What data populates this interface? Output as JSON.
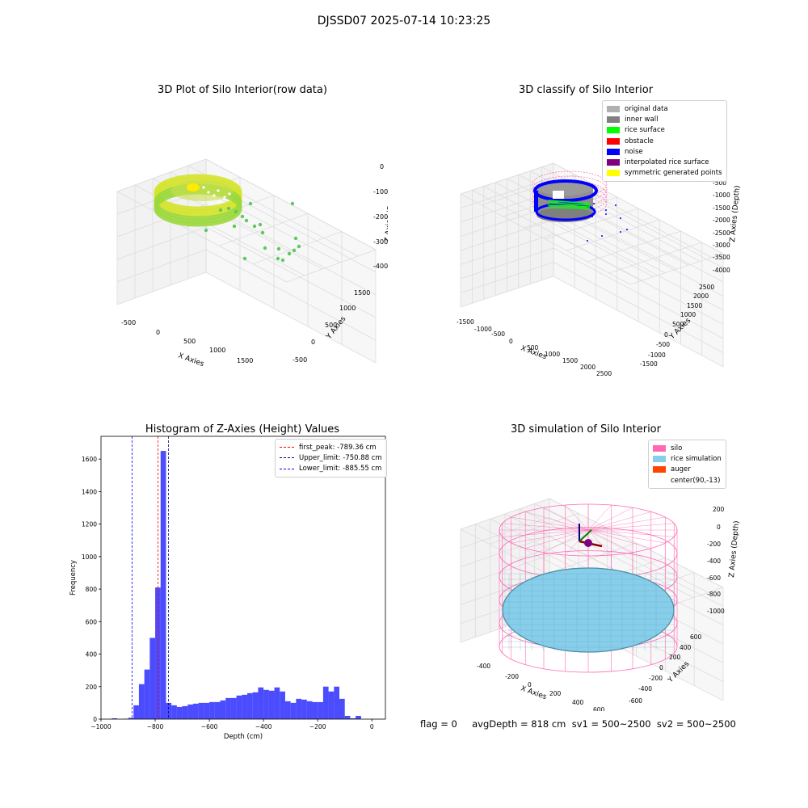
{
  "figure": {
    "title": "DJSSD07 2025-07-14 10:23:25",
    "footer": "flag = 0     avgDepth = 818 cm  sv1 = 500~2500  sv2 = 500~2500"
  },
  "panels": {
    "raw": {
      "title": "3D Plot of Silo Interior(row data)",
      "xlabel": "X Axies",
      "ylabel": "Y Axies",
      "zlabel": "Z Axies (Depth)",
      "xticks": [
        "-500",
        "0",
        "500",
        "1000",
        "1500"
      ],
      "yticks": [
        "-500",
        "0",
        "500",
        "1000",
        "1500"
      ],
      "zticks": [
        "0",
        "-1000",
        "-2000",
        "-3000",
        "-4000"
      ]
    },
    "classify": {
      "title": "3D classify of Silo Interior",
      "xlabel": "X Axies",
      "ylabel": "Y Axies",
      "zlabel": "Z Axies (Depth)",
      "xticks": [
        "-1500",
        "-1000",
        "-500",
        "0",
        "500",
        "1000",
        "1500",
        "2000",
        "2500"
      ],
      "yticks": [
        "-1500",
        "-1000",
        "-500",
        "0",
        "500",
        "1000",
        "1500",
        "2000",
        "2500"
      ],
      "zticks": [
        "-500",
        "-1000",
        "-1500",
        "-2000",
        "-2500",
        "-3000",
        "-3500",
        "-4000"
      ],
      "legend": [
        {
          "label": "original data",
          "color": "#b0b0b0"
        },
        {
          "label": "inner wall",
          "color": "#808080"
        },
        {
          "label": "rice surface",
          "color": "#00ff00"
        },
        {
          "label": "obstacle",
          "color": "#ff0000"
        },
        {
          "label": "noise",
          "color": "#0000ff"
        },
        {
          "label": "interpolated rice surface",
          "color": "#800080"
        },
        {
          "label": "symmetric generated points",
          "color": "#ffff00"
        }
      ]
    },
    "sim": {
      "title": "3D simulation of Silo Interior",
      "xlabel": "X Axies",
      "ylabel": "Y Axies",
      "zlabel": "Z Axies (Depth)",
      "xticks": [
        "-400",
        "-200",
        "0",
        "200",
        "400",
        "600"
      ],
      "yticks": [
        "-600",
        "-400",
        "-200",
        "0",
        "200",
        "400",
        "600"
      ],
      "zticks": [
        "200",
        "0",
        "-200",
        "-400",
        "-600",
        "-800",
        "-1000"
      ],
      "legend": [
        {
          "label": "silo",
          "color": "#ff69b4"
        },
        {
          "label": "rice simulation",
          "color": "#87ceeb"
        },
        {
          "label": "auger",
          "color": "#ff4500"
        },
        {
          "label": "center(90,-13)",
          "color": ""
        }
      ]
    }
  },
  "chart_data": {
    "type": "bar",
    "title": "Histogram of Z-Axies (Height) Values",
    "xlabel": "Depth (cm)",
    "ylabel": "Frequency",
    "xlim": [
      -1000,
      50
    ],
    "ylim": [
      0,
      1740
    ],
    "xticks": [
      -1000,
      -800,
      -600,
      -400,
      -200,
      0
    ],
    "yticks": [
      0,
      200,
      400,
      600,
      800,
      1000,
      1200,
      1400,
      1600
    ],
    "bin_width": 20,
    "bins": [
      [
        -960,
        5
      ],
      [
        -940,
        0
      ],
      [
        -920,
        2
      ],
      [
        -900,
        8
      ],
      [
        -880,
        85
      ],
      [
        -860,
        215
      ],
      [
        -840,
        305
      ],
      [
        -820,
        500
      ],
      [
        -800,
        810
      ],
      [
        -780,
        1650
      ],
      [
        -760,
        100
      ],
      [
        -740,
        85
      ],
      [
        -720,
        75
      ],
      [
        -700,
        80
      ],
      [
        -680,
        90
      ],
      [
        -660,
        95
      ],
      [
        -640,
        100
      ],
      [
        -620,
        100
      ],
      [
        -600,
        105
      ],
      [
        -580,
        105
      ],
      [
        -560,
        115
      ],
      [
        -540,
        130
      ],
      [
        -520,
        130
      ],
      [
        -500,
        145
      ],
      [
        -480,
        150
      ],
      [
        -460,
        160
      ],
      [
        -440,
        165
      ],
      [
        -420,
        195
      ],
      [
        -400,
        180
      ],
      [
        -380,
        175
      ],
      [
        -360,
        195
      ],
      [
        -340,
        170
      ],
      [
        -320,
        110
      ],
      [
        -300,
        100
      ],
      [
        -280,
        125
      ],
      [
        -260,
        120
      ],
      [
        -240,
        110
      ],
      [
        -220,
        105
      ],
      [
        -200,
        105
      ],
      [
        -180,
        200
      ],
      [
        -160,
        170
      ],
      [
        -140,
        200
      ],
      [
        -120,
        125
      ],
      [
        -100,
        20
      ],
      [
        -80,
        5
      ],
      [
        -60,
        20
      ]
    ],
    "lines": [
      {
        "label": "first_peak: -789.36 cm",
        "value": -789.36,
        "color": "#ff0000"
      },
      {
        "label": "Upper_limit: -750.88 cm",
        "value": -750.88,
        "color": "#00008b"
      },
      {
        "label": "Lower_limit: -885.55 cm",
        "value": -885.55,
        "color": "#0000ff"
      }
    ],
    "bar_color": "#0000ff",
    "bar_alpha": 0.7
  }
}
